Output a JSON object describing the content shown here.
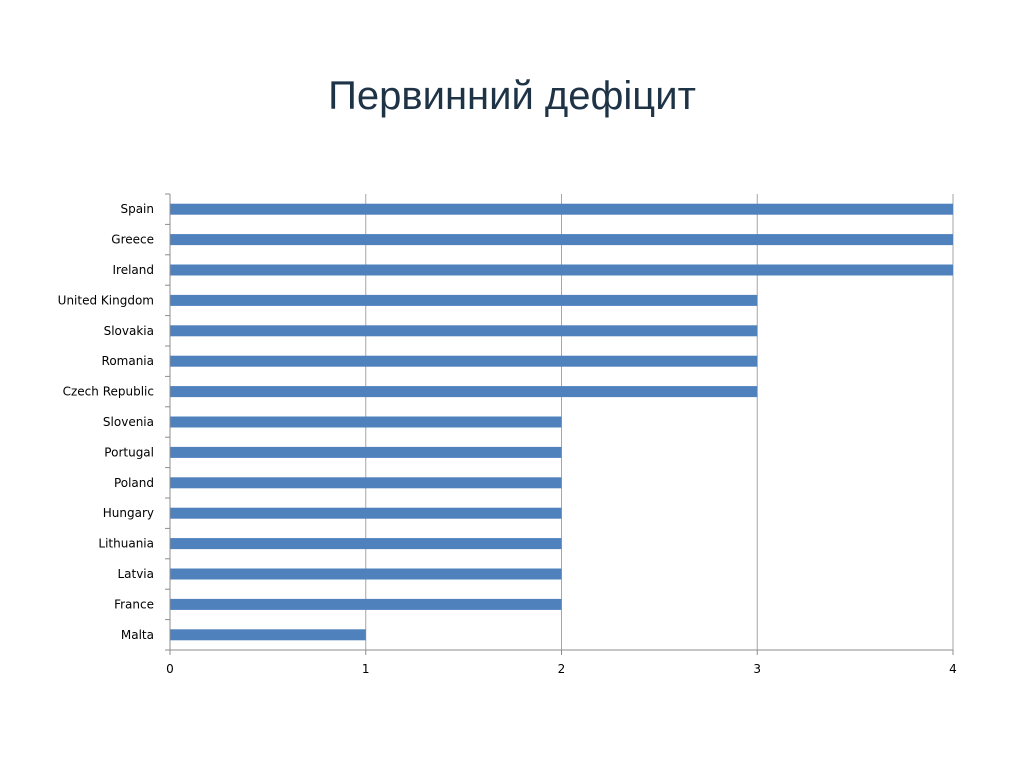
{
  "slide": {
    "title": "Первинний дефіцит"
  },
  "chart_data": {
    "type": "bar",
    "orientation": "horizontal",
    "title": "",
    "xlabel": "",
    "ylabel": "",
    "categories": [
      "Spain",
      "Greece",
      "Ireland",
      "United Kingdom",
      "Slovakia",
      "Romania",
      "Czech Republic",
      "Slovenia",
      "Portugal",
      "Poland",
      "Hungary",
      "Lithuania",
      "Latvia",
      "France",
      "Malta"
    ],
    "values": [
      4,
      4,
      4,
      3,
      3,
      3,
      3,
      2,
      2,
      2,
      2,
      2,
      2,
      2,
      1
    ],
    "xlim": [
      0,
      4
    ],
    "x_ticks": [
      "0",
      "1",
      "2",
      "3",
      "4"
    ],
    "grid": "vertical",
    "legend": "none",
    "bar_color": "#4f81bd",
    "gridline_color": "#a6a6a6"
  }
}
